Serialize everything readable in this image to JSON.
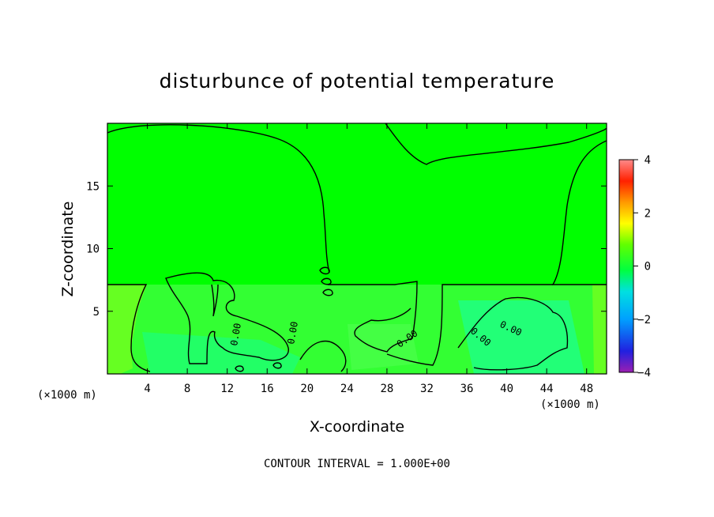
{
  "chart_data": {
    "type": "heatmap",
    "title": "disturbunce of potential temperature",
    "xlabel": "X-coordinate",
    "ylabel": "Z-coordinate",
    "x_unit": "(×1000 m)",
    "x_tick_labels": [
      "4",
      "8",
      "12",
      "16",
      "20",
      "24",
      "28",
      "32",
      "36",
      "40",
      "44",
      "48"
    ],
    "y_tick_labels": [
      "5",
      "10",
      "15"
    ],
    "xlim": [
      0,
      50
    ],
    "ylim": [
      0,
      20
    ],
    "colorbar": {
      "range": [
        -4,
        4
      ],
      "tick_labels": [
        "4",
        "2",
        "0",
        "−2",
        "−4"
      ],
      "colors": [
        "#9b1fb2",
        "#2020e0",
        "#00a0ff",
        "#00e0e0",
        "#00ff40",
        "#60ff00",
        "#ffff00",
        "#ff9900",
        "#ff2000",
        "#ff8a8a"
      ]
    },
    "field_value_background": 0,
    "contour_level_label": "0.00",
    "contour_interval_text": "CONTOUR INTERVAL = 1.000E+00",
    "grid": false,
    "colorbar_placement": "right"
  }
}
